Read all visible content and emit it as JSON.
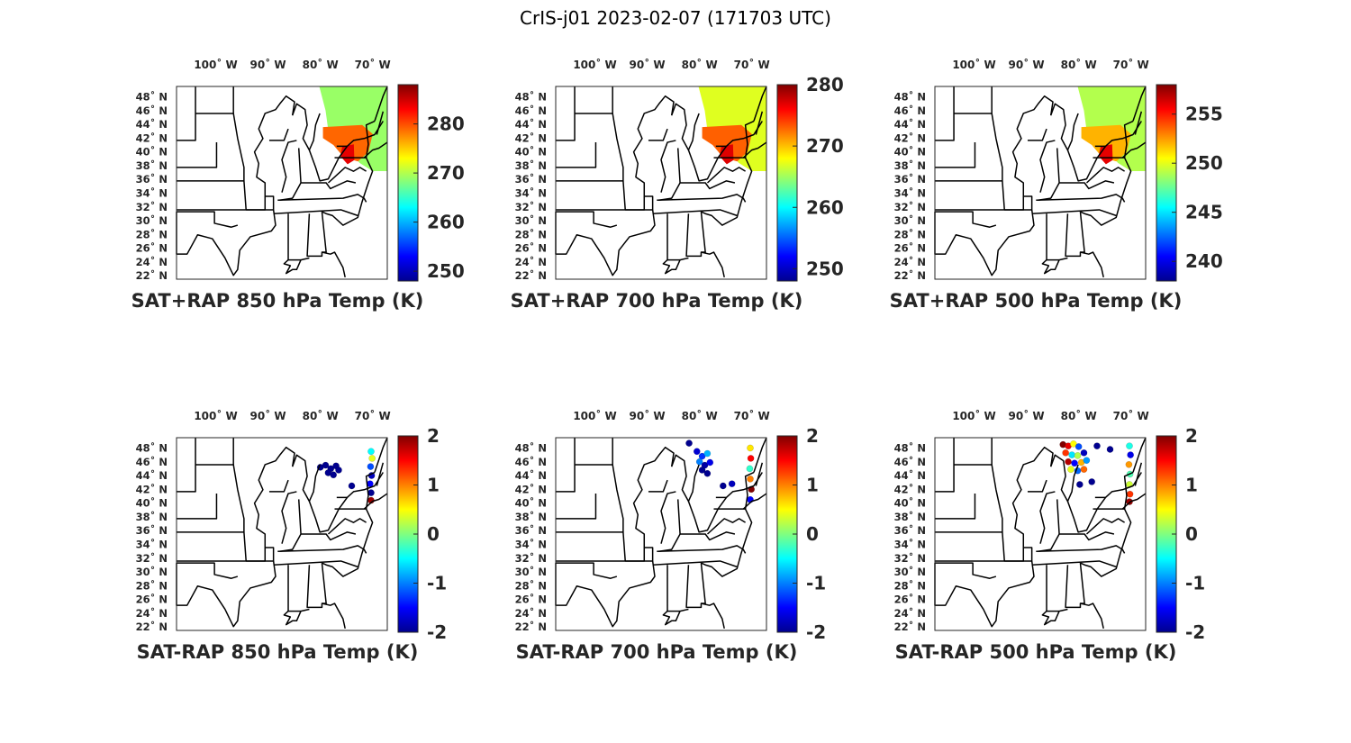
{
  "title": "CrIS-j01 2023-02-07 (171703 UTC)",
  "colors": {
    "jet": [
      "#00008f",
      "#0000ff",
      "#0080ff",
      "#00ffff",
      "#80ff80",
      "#ffff00",
      "#ff8000",
      "#ff0000",
      "#800000"
    ],
    "state_lines": "#000000",
    "axes": "#262626"
  },
  "chart_data": [
    {
      "type": "map",
      "panel": "row1-col1",
      "label": "SAT+RAP 850 hPa Temp (K)",
      "lon_ticks": [
        "100˚ W",
        "90˚ W",
        "80˚ W",
        "70˚ W"
      ],
      "lat_ticks": [
        "48˚ N",
        "46˚ N",
        "44˚ N",
        "42˚ N",
        "40˚ N",
        "38˚ N",
        "36˚ N",
        "34˚ N",
        "32˚ N",
        "30˚ N",
        "28˚ N",
        "26˚ N",
        "24˚ N",
        "22˚ N"
      ],
      "colorbar": {
        "ticks": [
          "280",
          "270",
          "260",
          "250"
        ],
        "range": [
          248,
          288
        ]
      },
      "overlay": "swath",
      "swath_regions": [
        {
          "region": "northern swath",
          "value": 269
        },
        {
          "region": "southern New England / Mid-Atlantic",
          "value": 279
        },
        {
          "region": "New Jersey coast",
          "value": 284
        }
      ]
    },
    {
      "type": "map",
      "panel": "row1-col2",
      "label": "SAT+RAP 700 hPa Temp (K)",
      "lon_ticks": [
        "100˚ W",
        "90˚ W",
        "80˚ W",
        "70˚ W"
      ],
      "lat_ticks": [
        "48˚ N",
        "46˚ N",
        "44˚ N",
        "42˚ N",
        "40˚ N",
        "38˚ N",
        "36˚ N",
        "34˚ N",
        "32˚ N",
        "30˚ N",
        "28˚ N",
        "26˚ N",
        "24˚ N",
        "22˚ N"
      ],
      "colorbar": {
        "ticks": [
          "280",
          "270",
          "260",
          "250"
        ],
        "range": [
          248,
          280
        ]
      },
      "overlay": "swath",
      "swath_regions": [
        {
          "region": "northern swath",
          "value": 267
        },
        {
          "region": "southern New England / Mid-Atlantic",
          "value": 273
        },
        {
          "region": "New Jersey coast",
          "value": 277
        }
      ]
    },
    {
      "type": "map",
      "panel": "row1-col3",
      "label": "SAT+RAP 500 hPa Temp (K)",
      "lon_ticks": [
        "100˚ W",
        "90˚ W",
        "80˚ W",
        "70˚ W"
      ],
      "lat_ticks": [
        "48˚ N",
        "46˚ N",
        "44˚ N",
        "42˚ N",
        "40˚ N",
        "38˚ N",
        "36˚ N",
        "34˚ N",
        "32˚ N",
        "30˚ N",
        "28˚ N",
        "26˚ N",
        "24˚ N",
        "22˚ N"
      ],
      "colorbar": {
        "ticks": [
          "255",
          "250",
          "245",
          "240"
        ],
        "range": [
          238,
          258
        ]
      },
      "overlay": "swath",
      "swath_regions": [
        {
          "region": "northern swath",
          "value": 249
        },
        {
          "region": "southern New England / Mid-Atlantic",
          "value": 252
        },
        {
          "region": "New Jersey coast",
          "value": 256
        }
      ]
    },
    {
      "type": "map",
      "panel": "row2-col1",
      "label": "SAT-RAP 850 hPa Temp (K)",
      "lon_ticks": [
        "100˚ W",
        "90˚ W",
        "80˚ W",
        "70˚ W"
      ],
      "lat_ticks": [
        "48˚ N",
        "46˚ N",
        "44˚ N",
        "42˚ N",
        "40˚ N",
        "38˚ N",
        "36˚ N",
        "34˚ N",
        "32˚ N",
        "30˚ N",
        "28˚ N",
        "26˚ N",
        "24˚ N",
        "22˚ N"
      ],
      "colorbar": {
        "ticks": [
          "2",
          "1",
          "0",
          "-1",
          "-2"
        ],
        "range": [
          -2,
          2
        ]
      },
      "overlay": "points",
      "points": [
        {
          "lon": -80,
          "lat": 45.2,
          "value": -2
        },
        {
          "lon": -79,
          "lat": 45.5,
          "value": -2
        },
        {
          "lon": -78,
          "lat": 45.0,
          "value": -2
        },
        {
          "lon": -77,
          "lat": 45.4,
          "value": -2
        },
        {
          "lon": -78.5,
          "lat": 44.4,
          "value": -2
        },
        {
          "lon": -77.5,
          "lat": 44.1,
          "value": -2
        },
        {
          "lon": -76.5,
          "lat": 44.8,
          "value": -2
        },
        {
          "lon": -74,
          "lat": 42.5,
          "value": -2
        },
        {
          "lon": -70.3,
          "lat": 47.5,
          "value": -0.5
        },
        {
          "lon": -70.1,
          "lat": 46.5,
          "value": 0.4
        },
        {
          "lon": -70.4,
          "lat": 45.3,
          "value": -1.2
        },
        {
          "lon": -70.2,
          "lat": 44.0,
          "value": -1.8
        },
        {
          "lon": -70.5,
          "lat": 42.8,
          "value": -1.5
        },
        {
          "lon": -70.3,
          "lat": 41.5,
          "value": -2
        },
        {
          "lon": -70.3,
          "lat": 40.4,
          "value": 1.9
        }
      ]
    },
    {
      "type": "map",
      "panel": "row2-col2",
      "label": "SAT-RAP 700 hPa Temp (K)",
      "lon_ticks": [
        "100˚ W",
        "90˚ W",
        "80˚ W",
        "70˚ W"
      ],
      "lat_ticks": [
        "48˚ N",
        "46˚ N",
        "44˚ N",
        "42˚ N",
        "40˚ N",
        "38˚ N",
        "36˚ N",
        "34˚ N",
        "32˚ N",
        "30˚ N",
        "28˚ N",
        "26˚ N",
        "24˚ N",
        "22˚ N"
      ],
      "colorbar": {
        "ticks": [
          "2",
          "1",
          "0",
          "-1",
          "-2"
        ],
        "range": [
          -2,
          2
        ]
      },
      "overlay": "points",
      "points": [
        {
          "lon": -82,
          "lat": 48.7,
          "value": -2
        },
        {
          "lon": -80.5,
          "lat": 47.5,
          "value": -1.7
        },
        {
          "lon": -79.5,
          "lat": 46.8,
          "value": -1.3
        },
        {
          "lon": -78.5,
          "lat": 47.2,
          "value": -0.8
        },
        {
          "lon": -80,
          "lat": 46.0,
          "value": -1.0
        },
        {
          "lon": -79,
          "lat": 45.5,
          "value": -1.9
        },
        {
          "lon": -78,
          "lat": 45.9,
          "value": -1.6
        },
        {
          "lon": -79.5,
          "lat": 44.8,
          "value": -2
        },
        {
          "lon": -78.5,
          "lat": 44.3,
          "value": -2
        },
        {
          "lon": -75.5,
          "lat": 42.5,
          "value": -2
        },
        {
          "lon": -73.8,
          "lat": 42.8,
          "value": -1.8
        },
        {
          "lon": -70.3,
          "lat": 48.0,
          "value": 0.6
        },
        {
          "lon": -70.2,
          "lat": 46.5,
          "value": 1.5
        },
        {
          "lon": -70.4,
          "lat": 45.0,
          "value": -0.3
        },
        {
          "lon": -70.3,
          "lat": 43.5,
          "value": 1.0
        },
        {
          "lon": -70.1,
          "lat": 42.0,
          "value": 2
        },
        {
          "lon": -70.3,
          "lat": 40.5,
          "value": -1.5
        }
      ]
    },
    {
      "type": "map",
      "panel": "row2-col3",
      "label": "SAT-RAP 500 hPa Temp (K)",
      "lon_ticks": [
        "100˚ W",
        "90˚ W",
        "80˚ W",
        "70˚ W"
      ],
      "lat_ticks": [
        "48˚ N",
        "46˚ N",
        "44˚ N",
        "42˚ N",
        "40˚ N",
        "38˚ N",
        "36˚ N",
        "34˚ N",
        "32˚ N",
        "30˚ N",
        "28˚ N",
        "26˚ N",
        "24˚ N",
        "22˚ N"
      ],
      "colorbar": {
        "ticks": [
          "2",
          "1",
          "0",
          "-1",
          "-2"
        ],
        "range": [
          -2,
          2
        ]
      },
      "overlay": "points",
      "points": [
        {
          "lon": -83,
          "lat": 48.5,
          "value": 2
        },
        {
          "lon": -82,
          "lat": 48.3,
          "value": 1.6
        },
        {
          "lon": -81,
          "lat": 48.6,
          "value": 0.5
        },
        {
          "lon": -80,
          "lat": 48.2,
          "value": -1.2
        },
        {
          "lon": -82.5,
          "lat": 47.3,
          "value": 1.3
        },
        {
          "lon": -81.3,
          "lat": 47.0,
          "value": -0.6
        },
        {
          "lon": -80.2,
          "lat": 46.9,
          "value": 0.2
        },
        {
          "lon": -79,
          "lat": 47.3,
          "value": -1.8
        },
        {
          "lon": -82,
          "lat": 46.0,
          "value": 1.8
        },
        {
          "lon": -80.8,
          "lat": 45.8,
          "value": -1.5
        },
        {
          "lon": -79.5,
          "lat": 45.9,
          "value": 0.8
        },
        {
          "lon": -78.5,
          "lat": 46.2,
          "value": -0.9
        },
        {
          "lon": -81.5,
          "lat": 44.9,
          "value": 0.4
        },
        {
          "lon": -80.2,
          "lat": 44.7,
          "value": -1.1
        },
        {
          "lon": -79,
          "lat": 44.9,
          "value": 1.1
        },
        {
          "lon": -76.5,
          "lat": 48.3,
          "value": -2
        },
        {
          "lon": -74,
          "lat": 47.8,
          "value": -2
        },
        {
          "lon": -79.8,
          "lat": 42.7,
          "value": -2
        },
        {
          "lon": -77.5,
          "lat": 43.1,
          "value": -2
        },
        {
          "lon": -70.3,
          "lat": 48.3,
          "value": -0.4
        },
        {
          "lon": -70.1,
          "lat": 47.0,
          "value": -1.6
        },
        {
          "lon": -70.4,
          "lat": 45.6,
          "value": 0.9
        },
        {
          "lon": -70.2,
          "lat": 44.2,
          "value": -0.2
        },
        {
          "lon": -70.3,
          "lat": 42.7,
          "value": 0.3
        },
        {
          "lon": -70.2,
          "lat": 41.3,
          "value": 1.3
        },
        {
          "lon": -70.3,
          "lat": 40.2,
          "value": 1.9
        }
      ]
    }
  ]
}
